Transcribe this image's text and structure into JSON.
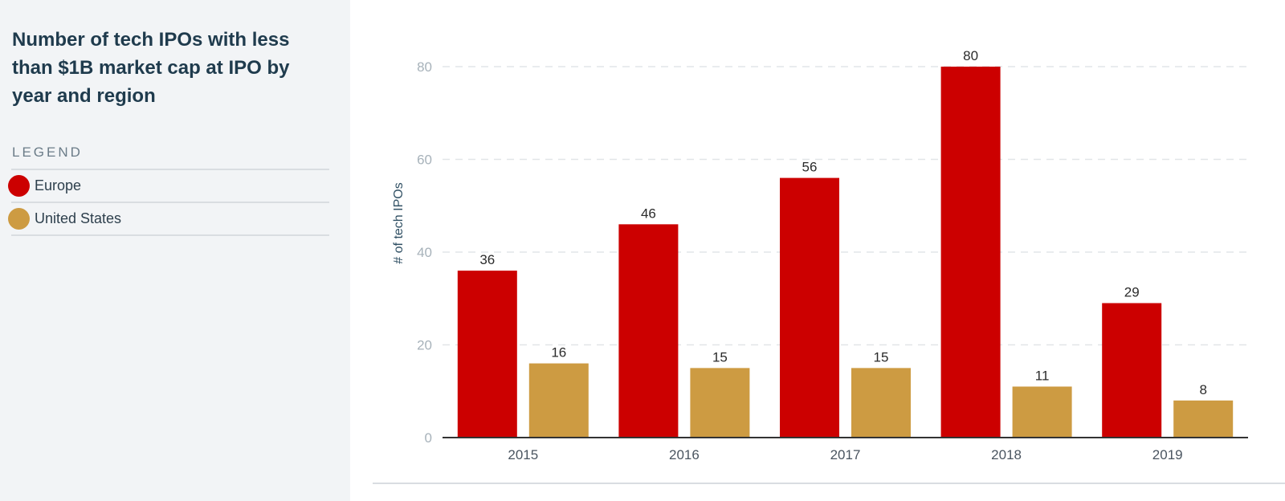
{
  "chart_data": {
    "type": "bar",
    "title": "Number of tech IPOs with less than $1B market cap at IPO by year and region",
    "legend_heading": "LEGEND",
    "categories": [
      "2015",
      "2016",
      "2017",
      "2018",
      "2019"
    ],
    "series": [
      {
        "name": "Europe",
        "color": "#cc0000",
        "values": [
          36,
          46,
          56,
          80,
          29
        ]
      },
      {
        "name": "United States",
        "color": "#cd9b42",
        "values": [
          16,
          15,
          15,
          11,
          8
        ]
      }
    ],
    "xlabel": "",
    "ylabel": "# of tech IPOs",
    "ylim": [
      0,
      80
    ],
    "yticks": [
      0,
      20,
      40,
      60,
      80
    ],
    "grid": true,
    "legend_position": "left-panel"
  }
}
